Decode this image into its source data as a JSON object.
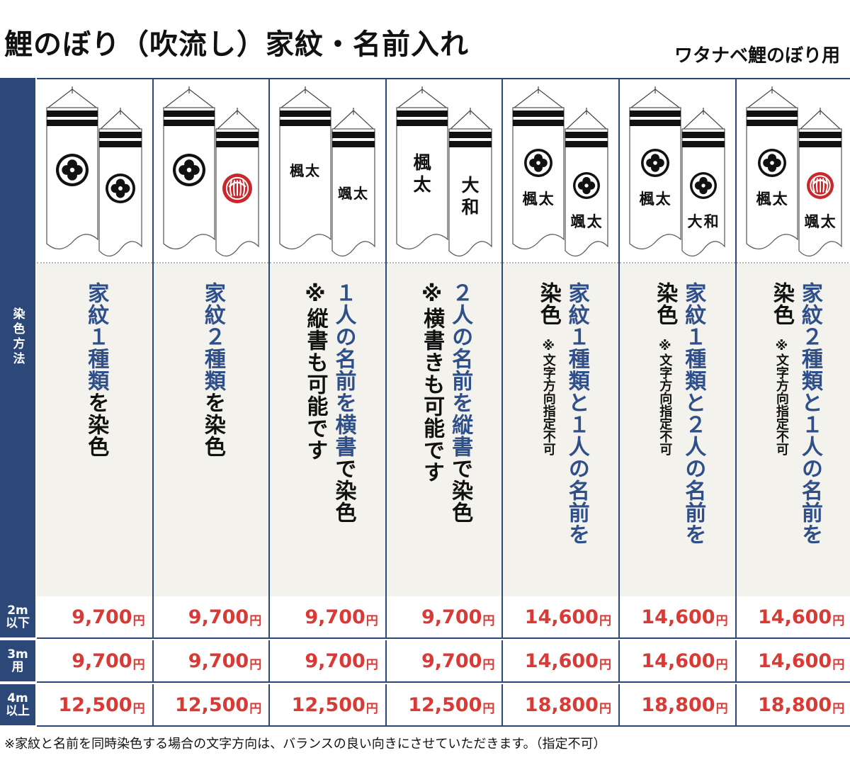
{
  "header": {
    "title": "鯉のぼり（吹流し）家紋・名前入れ",
    "subtitle": "ワタナベ鯉のぼり用"
  },
  "sidebar": {
    "method_label": "染色方法"
  },
  "sizes": [
    {
      "line1": "2m",
      "line2": "以下"
    },
    {
      "line1": "3m",
      "line2": "用"
    },
    {
      "line1": "4m",
      "line2": "以上"
    }
  ],
  "currency": "円",
  "columns": [
    {
      "banner": {
        "left": {
          "kamon": "black",
          "name": ""
        },
        "right": {
          "kamon": "black",
          "name": ""
        }
      },
      "desc": [
        [
          {
            "t": "家紋１種類",
            "c": "blue"
          },
          {
            "t": "を染色",
            "c": "black"
          }
        ]
      ],
      "prices": [
        "9,700",
        "9,700",
        "12,500"
      ]
    },
    {
      "banner": {
        "left": {
          "kamon": "black",
          "name": ""
        },
        "right": {
          "kamon": "red",
          "name": ""
        }
      },
      "desc": [
        [
          {
            "t": "家紋２種類",
            "c": "blue"
          },
          {
            "t": "を染色",
            "c": "black"
          }
        ]
      ],
      "prices": [
        "9,700",
        "9,700",
        "12,500"
      ]
    },
    {
      "banner": {
        "left": {
          "kamon": "",
          "name": "楓太",
          "dir": "h"
        },
        "right": {
          "kamon": "",
          "name": "颯太",
          "dir": "h"
        }
      },
      "desc": [
        [
          {
            "t": "１人の名前を横書",
            "c": "blue"
          },
          {
            "t": "で染色",
            "c": "black"
          }
        ],
        [
          {
            "t": "※縦書も可能です",
            "c": "black"
          }
        ]
      ],
      "prices": [
        "9,700",
        "9,700",
        "12,500"
      ]
    },
    {
      "banner": {
        "left": {
          "kamon": "",
          "name": "楓太",
          "dir": "v"
        },
        "right": {
          "kamon": "",
          "name": "大和",
          "dir": "v"
        }
      },
      "desc": [
        [
          {
            "t": "２人の名前を縦書",
            "c": "blue"
          },
          {
            "t": "で染色",
            "c": "black"
          }
        ],
        [
          {
            "t": "※横書きも可能です",
            "c": "black"
          }
        ]
      ],
      "prices": [
        "9,700",
        "9,700",
        "12,500"
      ]
    },
    {
      "banner": {
        "left": {
          "kamon": "black",
          "name": "楓太",
          "dir": "h"
        },
        "right": {
          "kamon": "black",
          "name": "颯太",
          "dir": "h"
        }
      },
      "desc": [
        [
          {
            "t": "家紋１種類と１人の名前を",
            "c": "blue"
          }
        ],
        [
          {
            "t": "染色",
            "c": "black"
          },
          {
            "t": "　※文字方向指定不可",
            "c": "black",
            "small": true
          }
        ]
      ],
      "prices": [
        "14,600",
        "14,600",
        "18,800"
      ]
    },
    {
      "banner": {
        "left": {
          "kamon": "black",
          "name": "楓太",
          "dir": "h"
        },
        "right": {
          "kamon": "black",
          "name": "大和",
          "dir": "h"
        }
      },
      "desc": [
        [
          {
            "t": "家紋１種類と２人の名前を",
            "c": "blue"
          }
        ],
        [
          {
            "t": "染色",
            "c": "black"
          },
          {
            "t": "　※文字方向指定不可",
            "c": "black",
            "small": true
          }
        ]
      ],
      "prices": [
        "14,600",
        "14,600",
        "18,800"
      ]
    },
    {
      "banner": {
        "left": {
          "kamon": "black",
          "name": "楓太",
          "dir": "h"
        },
        "right": {
          "kamon": "red",
          "name": "颯太",
          "dir": "h"
        }
      },
      "desc": [
        [
          {
            "t": "家紋２種類と１人の名前を",
            "c": "blue"
          }
        ],
        [
          {
            "t": "染色",
            "c": "black"
          },
          {
            "t": "　※文字方向指定不可",
            "c": "black",
            "small": true
          }
        ]
      ],
      "prices": [
        "14,600",
        "14,600",
        "18,800"
      ]
    }
  ],
  "footnote": "※家紋と名前を同時染色する場合の文字方向は、バランスの良い向きにさせていただきます。（指定不可）"
}
